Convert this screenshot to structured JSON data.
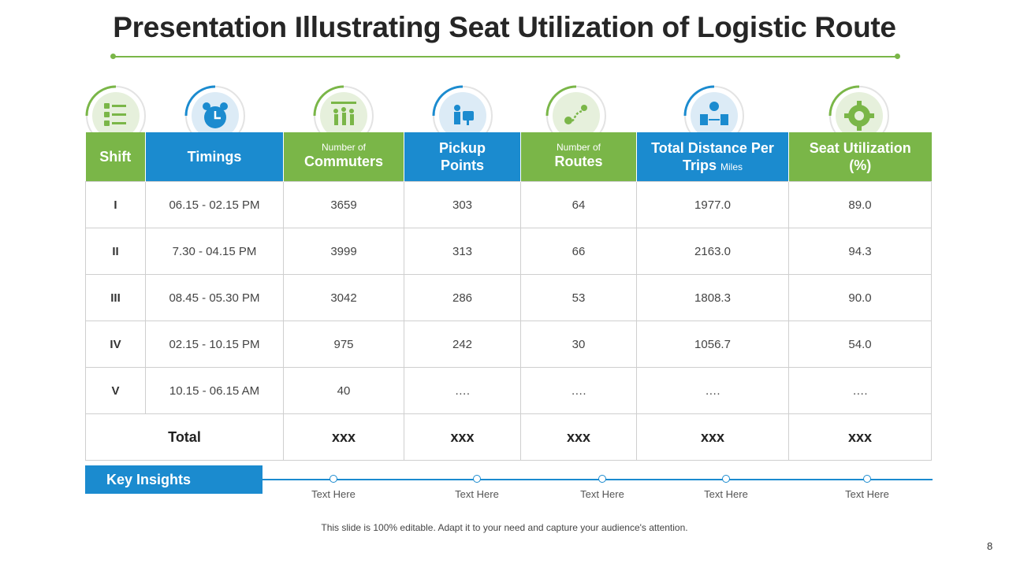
{
  "title": "Presentation Illustrating Seat Utilization of Logistic Route",
  "colors": {
    "green": "#7ab648",
    "blue": "#1b8bcf"
  },
  "icons": [
    "checklist-icon",
    "alarm-clock-icon",
    "commuters-icon",
    "pickup-points-icon",
    "routes-icon",
    "distance-icon",
    "seat-utilization-gear-icon"
  ],
  "table": {
    "headers": {
      "shift": "Shift",
      "timings": "Timings",
      "commuters_small": "Number of",
      "commuters": "Commuters",
      "pickup_line1": "Pickup",
      "pickup_line2": "Points",
      "routes_small": "Number of",
      "routes": "Routes",
      "distance_line1": "Total Distance Per",
      "distance_line2": "Trips",
      "distance_unit": "Miles",
      "seat_line1": "Seat Utilization",
      "seat_line2": "(%)"
    },
    "rows": [
      [
        "I",
        "06.15 - 02.15 PM",
        "3659",
        "303",
        "64",
        "1977.0",
        "89.0"
      ],
      [
        "II",
        "7.30 - 04.15 PM",
        "3999",
        "313",
        "66",
        "2163.0",
        "94.3"
      ],
      [
        "III",
        "08.45 - 05.30 PM",
        "3042",
        "286",
        "53",
        "1808.3",
        "90.0"
      ],
      [
        "IV",
        "02.15 - 10.15 PM",
        "975",
        "242",
        "30",
        "1056.7",
        "54.0"
      ],
      [
        "V",
        "10.15 - 06.15 AM",
        "40",
        "….",
        "….",
        "….",
        "…."
      ]
    ],
    "total": [
      "Total",
      "xxx",
      "xxx",
      "xxx",
      "xxx",
      "xxx"
    ]
  },
  "insights": {
    "label": "Key Insights",
    "items": [
      "Text Here",
      "Text Here",
      "Text Here",
      "Text Here",
      "Text Here"
    ]
  },
  "footer_note": "This slide is 100% editable. Adapt it to your need and capture your audience's attention.",
  "page_number": "8"
}
